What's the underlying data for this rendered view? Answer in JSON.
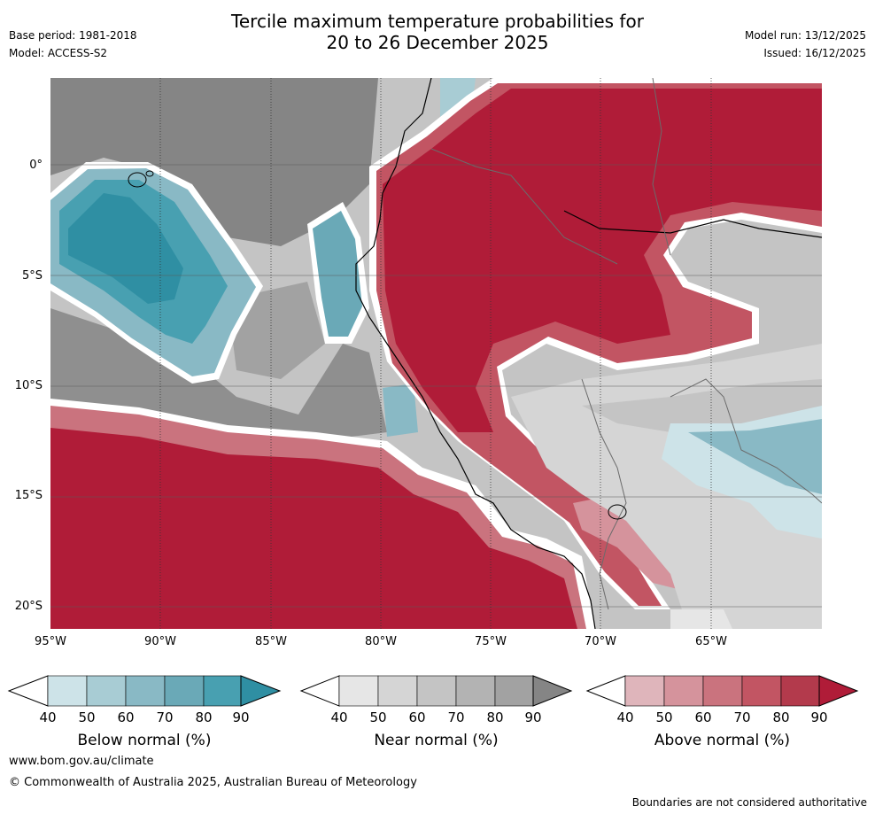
{
  "header": {
    "title_line1": "Tercile maximum temperature probabilities for",
    "title_line2": "20 to 26 December 2025",
    "base_period": "Base period: 1981-2018",
    "model": "Model: ACCESS-S2",
    "model_run": "Model run: 13/12/2025",
    "issued": "Issued: 16/12/2025"
  },
  "map": {
    "lat_labels": [
      "0°",
      "5°S",
      "10°S",
      "15°S",
      "20°S"
    ],
    "lon_labels": [
      "95°W",
      "90°W",
      "85°W",
      "80°W",
      "75°W",
      "70°W",
      "65°W"
    ]
  },
  "legends": [
    {
      "label": "Below normal (%)",
      "ticks": [
        "40",
        "50",
        "60",
        "70",
        "80",
        "90"
      ],
      "colors": [
        "#ffffff",
        "#cde3e8",
        "#a8ccd4",
        "#89b9c5",
        "#6aa9b7",
        "#48a0b1",
        "#2f8fa3"
      ]
    },
    {
      "label": "Near normal (%)",
      "ticks": [
        "40",
        "50",
        "60",
        "70",
        "80",
        "90"
      ],
      "colors": [
        "#ffffff",
        "#e6e6e6",
        "#d5d5d5",
        "#c4c4c4",
        "#b3b3b3",
        "#a2a2a2",
        "#858585"
      ]
    },
    {
      "label": "Above normal (%)",
      "ticks": [
        "40",
        "50",
        "60",
        "70",
        "80",
        "90"
      ],
      "colors": [
        "#ffffff",
        "#dfb5bb",
        "#d5939c",
        "#ca737e",
        "#c25563",
        "#b33a4c",
        "#b01c38"
      ]
    }
  ],
  "footer": {
    "url": "www.bom.gov.au/climate",
    "copyright": "© Commonwealth of Australia 2025, Australian Bureau of Meteorology",
    "disclaimer": "Boundaries are not considered authoritative"
  }
}
